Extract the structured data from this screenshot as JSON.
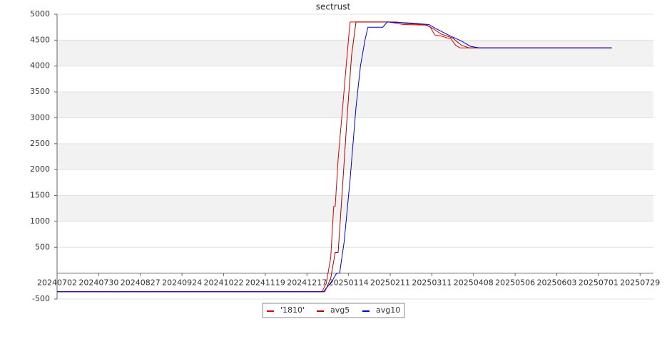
{
  "chart_data": {
    "type": "line",
    "title": "sectrust",
    "xlim": [
      "20240702",
      "20250807"
    ],
    "xticks": [
      "20240702",
      "20240730",
      "20240827",
      "20240924",
      "20241022",
      "20241119",
      "20241217",
      "20250114",
      "20250211",
      "20250311",
      "20250408",
      "20250506",
      "20250603",
      "20250701",
      "20250729"
    ],
    "ylim": [
      -500,
      5000
    ],
    "yticks": [
      -500,
      500,
      1000,
      1500,
      2000,
      2500,
      3000,
      3500,
      4000,
      4500,
      5000
    ],
    "grid": "bands",
    "legend": "bottom",
    "series": [
      {
        "name": "'1810'",
        "color": "#dd0000",
        "x": [
          "20240702",
          "20241227",
          "20241230",
          "20250102",
          "20250104",
          "20250105",
          "20250107",
          "20250110",
          "20250113",
          "20250115",
          "20250210",
          "20250220",
          "20250307",
          "20250310",
          "20250313",
          "20250317",
          "20250324",
          "20250327",
          "20250330",
          "20250710"
        ],
        "values": [
          -360,
          -360,
          -200,
          300,
          1290,
          1290,
          2200,
          3200,
          4200,
          4850,
          4850,
          4800,
          4790,
          4750,
          4600,
          4580,
          4520,
          4400,
          4350,
          4350
        ]
      },
      {
        "name": "avg5",
        "color": "#aa0000",
        "x": [
          "20240702",
          "20241229",
          "20250102",
          "20250105",
          "20250107",
          "20250110",
          "20250113",
          "20250116",
          "20250119",
          "20250215",
          "20250222",
          "20250307",
          "20250312",
          "20250317",
          "20250325",
          "20250331",
          "20250405",
          "20250710"
        ],
        "values": [
          -360,
          -360,
          -100,
          400,
          400,
          1700,
          3000,
          4200,
          4850,
          4850,
          4820,
          4800,
          4720,
          4620,
          4540,
          4400,
          4350,
          4350
        ]
      },
      {
        "name": "avg10",
        "color": "#0000cc",
        "x": [
          "20240702",
          "20241228",
          "20250103",
          "20250106",
          "20250108",
          "20250111",
          "20250115",
          "20250119",
          "20250122",
          "20250125",
          "20250127",
          "20250206",
          "20250209",
          "20250225",
          "20250309",
          "20250314",
          "20250322",
          "20250331",
          "20250406",
          "20250412",
          "20250710"
        ],
        "values": [
          -360,
          -360,
          -150,
          0,
          0,
          600,
          1800,
          3200,
          4000,
          4500,
          4750,
          4750,
          4850,
          4830,
          4800,
          4720,
          4600,
          4480,
          4380,
          4350,
          4350
        ]
      }
    ]
  }
}
